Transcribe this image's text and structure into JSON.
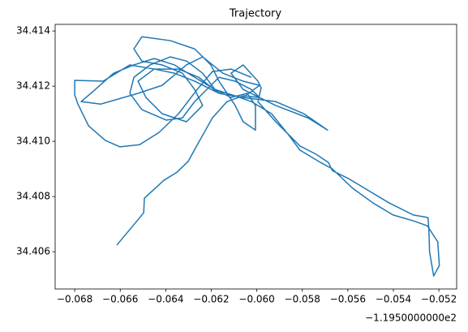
{
  "chart_data": {
    "type": "line",
    "title": "Trajectory",
    "offset_text": "−1.1950000000e2",
    "x": [
      -0.06615,
      -0.06497,
      -0.06494,
      -0.06408,
      -0.06351,
      -0.06302,
      -0.06255,
      -0.06195,
      -0.06131,
      -0.0606,
      -0.05988,
      -0.06024,
      -0.06095,
      -0.06166,
      -0.0622,
      -0.06273,
      -0.06327,
      -0.06398,
      -0.06505,
      -0.06558,
      -0.0654,
      -0.06469,
      -0.0638,
      -0.06309,
      -0.06238,
      -0.06184,
      -0.06113,
      -0.06042,
      -0.06006,
      -0.06006,
      -0.0606,
      -0.06095,
      -0.06166,
      -0.06202,
      -0.06273,
      -0.0638,
      -0.06505,
      -0.0654,
      -0.06505,
      -0.06416,
      -0.06327,
      -0.06273,
      -0.06238,
      -0.06309,
      -0.06416,
      -0.06487,
      -0.06522,
      -0.06451,
      -0.06344,
      -0.06255,
      -0.06166,
      -0.0606,
      -0.05917,
      -0.05793,
      -0.05689,
      -0.05775,
      -0.05917,
      -0.0606,
      -0.06113,
      -0.0606,
      -0.05995,
      -0.05981,
      -0.05995,
      -0.05917,
      -0.0581,
      -0.05739,
      -0.05686,
      -0.05668,
      -0.05597,
      -0.05508,
      -0.05419,
      -0.05312,
      -0.05248,
      -0.05244,
      -0.05241,
      -0.05223,
      -0.05198,
      -0.05205,
      -0.05251,
      -0.05312,
      -0.05401,
      -0.0549,
      -0.05579,
      -0.05668,
      -0.05721,
      -0.0581,
      -0.05864,
      -0.05935,
      -0.06024,
      -0.06095,
      -0.06184,
      -0.06273,
      -0.06362,
      -0.06451,
      -0.0654,
      -0.06629,
      -0.06718,
      -0.06772,
      -0.06686,
      -0.06522,
      -0.06416,
      -0.06309,
      -0.06238,
      -0.06149,
      -0.0606,
      -0.05988,
      -0.0606,
      -0.06166,
      -0.06273,
      -0.06362,
      -0.06451,
      -0.06558,
      -0.06675,
      -0.068,
      -0.068,
      -0.06786,
      -0.06739,
      -0.06665,
      -0.06601,
      -0.06515,
      -0.0643,
      -0.06344,
      -0.06262,
      -0.06195,
      -0.06113,
      -0.06024
    ],
    "series": [
      {
        "color": "#1f77b4",
        "values": [
          34.40624,
          34.40741,
          34.40794,
          34.40859,
          34.40888,
          34.40927,
          34.40997,
          34.41085,
          34.41144,
          34.41165,
          34.41159,
          34.41188,
          34.41218,
          34.41232,
          34.41188,
          34.41144,
          34.41085,
          34.41077,
          34.41115,
          34.41174,
          34.41232,
          34.41277,
          34.41306,
          34.41291,
          34.41247,
          34.41188,
          34.41159,
          34.41174,
          34.4113,
          34.41041,
          34.41071,
          34.4113,
          34.41218,
          34.41277,
          34.41335,
          34.41365,
          34.41379,
          34.41335,
          34.41291,
          34.41277,
          34.41247,
          34.41188,
          34.4113,
          34.41071,
          34.411,
          34.41159,
          34.41218,
          34.41262,
          34.41262,
          34.41232,
          34.41174,
          34.41159,
          34.41144,
          34.411,
          34.41041,
          34.41085,
          34.4113,
          34.41188,
          34.41247,
          34.41277,
          34.41218,
          34.41194,
          34.41144,
          34.41071,
          34.40983,
          34.40953,
          34.40924,
          34.40894,
          34.40865,
          34.40821,
          34.40777,
          34.40733,
          34.40724,
          34.40683,
          34.406,
          34.40512,
          34.4055,
          34.40636,
          34.40694,
          34.40712,
          34.40733,
          34.40777,
          34.4083,
          34.409,
          34.40924,
          34.40968,
          34.41027,
          34.411,
          34.41144,
          34.41165,
          34.41188,
          34.41232,
          34.41277,
          34.413,
          34.41277,
          34.41247,
          34.41182,
          34.41144,
          34.41135,
          34.41174,
          34.41203,
          34.41277,
          34.41306,
          34.41247,
          34.41218,
          34.41203,
          34.41159,
          34.41174,
          34.41218,
          34.41247,
          34.41262,
          34.41277,
          34.41218,
          34.41221,
          34.41168,
          34.41135,
          34.41056,
          34.41003,
          34.4098,
          34.40988,
          34.41032,
          34.411,
          34.41188,
          34.41253,
          34.41262,
          34.41232
        ]
      }
    ],
    "xlim": [
      -0.06886,
      -0.05122
    ],
    "ylim": [
      34.40465,
      34.41424
    ],
    "xticks": [
      {
        "value": -0.068,
        "label": "−0.068"
      },
      {
        "value": -0.066,
        "label": "−0.066"
      },
      {
        "value": -0.064,
        "label": "−0.064"
      },
      {
        "value": -0.062,
        "label": "−0.062"
      },
      {
        "value": -0.06,
        "label": "−0.060"
      },
      {
        "value": -0.058,
        "label": "−0.058"
      },
      {
        "value": -0.056,
        "label": "−0.056"
      },
      {
        "value": -0.054,
        "label": "−0.054"
      },
      {
        "value": -0.052,
        "label": "−0.052"
      }
    ],
    "yticks": [
      34.406,
      34.408,
      {
        "value": 34.41,
        "label": "34.410"
      },
      34.412,
      34.414
    ],
    "grid": false
  }
}
